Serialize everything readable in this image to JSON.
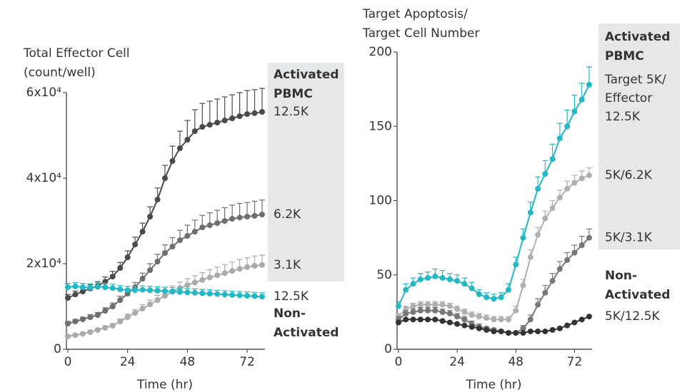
{
  "chart_data": [
    {
      "type": "line",
      "ylabel": [
        "Total Effector Cell",
        "(count/well)"
      ],
      "xlabel": "Time (hr)",
      "x": [
        0,
        3,
        6,
        9,
        12,
        15,
        18,
        21,
        24,
        27,
        30,
        33,
        36,
        39,
        42,
        45,
        48,
        51,
        54,
        57,
        60,
        63,
        66,
        69,
        72,
        75,
        78
      ],
      "xlim": [
        0,
        78
      ],
      "xticks": [
        0,
        24,
        48,
        72
      ],
      "ylim": [
        0,
        60000
      ],
      "yticks": [
        0,
        {
          "value": 20000,
          "label": "2x10⁴"
        },
        {
          "value": 40000,
          "label": "4x10⁴"
        },
        {
          "value": 60000,
          "label": "6x10⁴"
        }
      ],
      "annotations": [
        [
          "Activated",
          "PBMC"
        ],
        [
          "Non-",
          "Activated"
        ]
      ],
      "series": [
        {
          "name": "12.5K",
          "color": "#4a4a4a",
          "values": [
            12000,
            12800,
            13500,
            14200,
            14800,
            15800,
            17000,
            19000,
            21500,
            24500,
            27500,
            31000,
            35000,
            40000,
            44000,
            47000,
            49000,
            51000,
            52000,
            52500,
            53000,
            53500,
            54000,
            54500,
            55000,
            55200,
            55500
          ],
          "errors": [
            800,
            800,
            800,
            900,
            1000,
            1100,
            1200,
            1300,
            1500,
            1700,
            2000,
            2300,
            2700,
            3000,
            3500,
            4000,
            4500,
            5000,
            5500,
            5500,
            5500,
            5500,
            5500,
            5500,
            5500,
            5500,
            5500
          ]
        },
        {
          "name": "6.2K",
          "color": "#6e6e6e",
          "values": [
            6000,
            6500,
            7000,
            7500,
            8000,
            9000,
            10000,
            11500,
            13000,
            14500,
            16500,
            18500,
            20500,
            22500,
            24000,
            25500,
            26500,
            27500,
            28500,
            29000,
            29500,
            30000,
            30500,
            30800,
            31000,
            31200,
            31500
          ],
          "errors": [
            500,
            500,
            500,
            600,
            600,
            700,
            800,
            900,
            1000,
            1100,
            1300,
            1500,
            1700,
            1900,
            2100,
            2300,
            2500,
            2700,
            2800,
            2900,
            3000,
            3100,
            3200,
            3300,
            3300,
            3400,
            3400
          ]
        },
        {
          "name": "3.1K",
          "color": "#ababab",
          "values": [
            3000,
            3300,
            3600,
            4000,
            4500,
            5000,
            5500,
            6500,
            7500,
            8500,
            9500,
            10500,
            11500,
            12500,
            13500,
            14300,
            15000,
            15600,
            16200,
            16800,
            17300,
            17800,
            18300,
            18800,
            19200,
            19500,
            19700
          ],
          "errors": [
            300,
            300,
            300,
            400,
            400,
            500,
            500,
            600,
            700,
            800,
            900,
            1000,
            1100,
            1200,
            1300,
            1400,
            1500,
            1600,
            1700,
            1800,
            1900,
            2000,
            2100,
            2200,
            2200,
            2300,
            2300
          ]
        },
        {
          "name": "12.5K",
          "color": "#22b8c4",
          "values": [
            14500,
            14700,
            14500,
            14400,
            14600,
            14500,
            14300,
            14000,
            13800,
            13800,
            13900,
            13800,
            13700,
            13600,
            13500,
            13400,
            13300,
            13200,
            13100,
            13000,
            12900,
            12800,
            12700,
            12600,
            12500,
            12400,
            12300
          ],
          "errors": [
            900,
            900,
            900,
            900,
            900,
            900,
            900,
            900,
            900,
            900,
            900,
            900,
            900,
            900,
            900,
            900,
            900,
            900,
            900,
            900,
            900,
            900,
            900,
            900,
            900,
            900,
            900
          ]
        }
      ]
    },
    {
      "type": "line",
      "ylabel": [
        "Target Apoptosis/",
        "Target Cell Number"
      ],
      "xlabel": "Time (hr)",
      "x": [
        0,
        3,
        6,
        9,
        12,
        15,
        18,
        21,
        24,
        27,
        30,
        33,
        36,
        39,
        42,
        45,
        48,
        51,
        54,
        57,
        60,
        63,
        66,
        69,
        72,
        75,
        78
      ],
      "xlim": [
        0,
        78
      ],
      "xticks": [
        0,
        24,
        48,
        72
      ],
      "ylim": [
        0,
        200
      ],
      "yticks": [
        0,
        50,
        100,
        150,
        200
      ],
      "annotations": [
        [
          "Activated",
          "PBMC"
        ],
        [
          "Non-",
          "Activated"
        ]
      ],
      "series": [
        {
          "name": [
            "Target 5K/",
            "Effector",
            "12.5K"
          ],
          "color": "#22b8c4",
          "values": [
            29,
            40,
            44,
            47,
            48,
            49,
            48,
            47,
            46,
            44,
            41,
            37,
            35,
            34,
            35,
            40,
            57,
            75,
            92,
            108,
            118,
            128,
            142,
            150,
            160,
            168,
            178
          ],
          "errors": [
            3,
            4,
            4,
            4,
            4,
            5,
            5,
            4,
            4,
            4,
            4,
            3,
            3,
            3,
            3,
            4,
            5,
            6,
            7,
            8,
            9,
            10,
            10,
            11,
            11,
            11,
            12
          ]
        },
        {
          "name": "5K/6.2K",
          "color": "#b0b0b0",
          "values": [
            22,
            27,
            29,
            30,
            30,
            30,
            30,
            29,
            27,
            25,
            23,
            22,
            21,
            20,
            20,
            20,
            26,
            43,
            62,
            77,
            88,
            95,
            102,
            108,
            112,
            115,
            117
          ],
          "errors": [
            2,
            2,
            2,
            2,
            2,
            2,
            2,
            2,
            2,
            2,
            2,
            2,
            2,
            2,
            2,
            2,
            3,
            4,
            5,
            5,
            5,
            5,
            5,
            5,
            5,
            5,
            5
          ]
        },
        {
          "name": "5K/3.1K",
          "color": "#777777",
          "values": [
            20,
            24,
            25,
            26,
            26,
            26,
            25,
            24,
            22,
            20,
            17,
            15,
            14,
            13,
            12,
            11,
            11,
            14,
            20,
            30,
            38,
            46,
            54,
            60,
            65,
            70,
            75
          ],
          "errors": [
            2,
            2,
            2,
            2,
            2,
            2,
            2,
            2,
            2,
            2,
            2,
            2,
            1,
            1,
            1,
            1,
            1,
            2,
            3,
            4,
            5,
            5,
            5,
            5,
            5,
            6,
            6
          ]
        },
        {
          "name": "5K/12.5K",
          "color": "#333333",
          "values": [
            18,
            20,
            20,
            20,
            20,
            20,
            19,
            18,
            17,
            16,
            15,
            14,
            13,
            12,
            12,
            11,
            11,
            11,
            12,
            12,
            12,
            13,
            14,
            16,
            18,
            20,
            22
          ]
        }
      ]
    }
  ]
}
